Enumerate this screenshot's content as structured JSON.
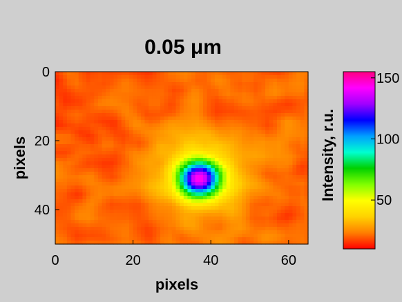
{
  "chart_data": {
    "type": "heatmap",
    "title": "0.05 μm",
    "xlabel": "pixels",
    "ylabel": "pixels",
    "xlim": [
      0,
      65
    ],
    "ylim": [
      0,
      50
    ],
    "y_reversed": true,
    "x_ticks": [
      "0",
      "20",
      "40",
      "60"
    ],
    "x_tick_values": [
      0,
      20,
      40,
      60
    ],
    "y_ticks": [
      "0",
      "20",
      "40"
    ],
    "y_tick_values": [
      0,
      20,
      40
    ],
    "colorbar": {
      "label": "Intensity, r.u.",
      "min": 10,
      "max": 155,
      "ticks": [
        "50",
        "100",
        "150"
      ],
      "tick_values": [
        50,
        100,
        150
      ],
      "colormap": [
        "#ff0000",
        "#ff7f00",
        "#ffd200",
        "#ffff00",
        "#80ff00",
        "#00d000",
        "#00ffd0",
        "#00a0ff",
        "#0000ff",
        "#a000ff",
        "#ff00ff",
        "#ff0080"
      ]
    },
    "heatmap": {
      "grid_cols": 65,
      "grid_rows": 50,
      "background_level": 20,
      "peak": {
        "x": 37,
        "y": 31,
        "value": 140
      }
    }
  },
  "colors": {
    "background": "#cfcfcf",
    "plot_background": "#ff2a00"
  }
}
